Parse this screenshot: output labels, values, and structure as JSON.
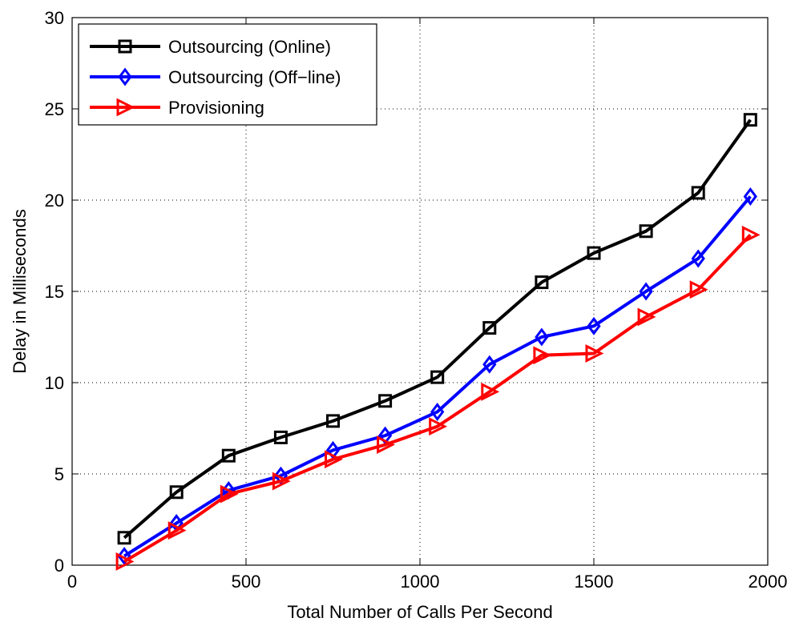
{
  "chart_data": {
    "type": "line",
    "xlabel": "Total Number of Calls Per Second",
    "ylabel": "Delay in Milliseconds",
    "xlim": [
      0,
      2000
    ],
    "ylim": [
      0,
      30
    ],
    "xticks": [
      0,
      500,
      1000,
      1500,
      2000
    ],
    "yticks": [
      0,
      5,
      10,
      15,
      20,
      25,
      30
    ],
    "grid": true,
    "legend_position": "top-left",
    "x": [
      150,
      300,
      450,
      600,
      750,
      900,
      1050,
      1200,
      1350,
      1500,
      1650,
      1800,
      1950
    ],
    "series": [
      {
        "name": "Outsourcing (Online)",
        "color": "#000000",
        "marker": "square",
        "values": [
          1.5,
          4.0,
          6.0,
          7.0,
          7.9,
          9.0,
          10.3,
          13.0,
          15.5,
          17.1,
          18.3,
          20.4,
          24.4
        ]
      },
      {
        "name": "Outsourcing (Off−line)",
        "color": "#0000ff",
        "marker": "diamond",
        "values": [
          0.5,
          2.3,
          4.1,
          4.9,
          6.3,
          7.1,
          8.4,
          11.0,
          12.5,
          13.1,
          15.0,
          16.8,
          20.2
        ]
      },
      {
        "name": "Provisioning",
        "color": "#ff0000",
        "marker": "triangle-right",
        "values": [
          0.2,
          1.9,
          3.9,
          4.6,
          5.8,
          6.6,
          7.6,
          9.5,
          11.5,
          11.6,
          13.6,
          15.1,
          18.1
        ]
      }
    ]
  }
}
